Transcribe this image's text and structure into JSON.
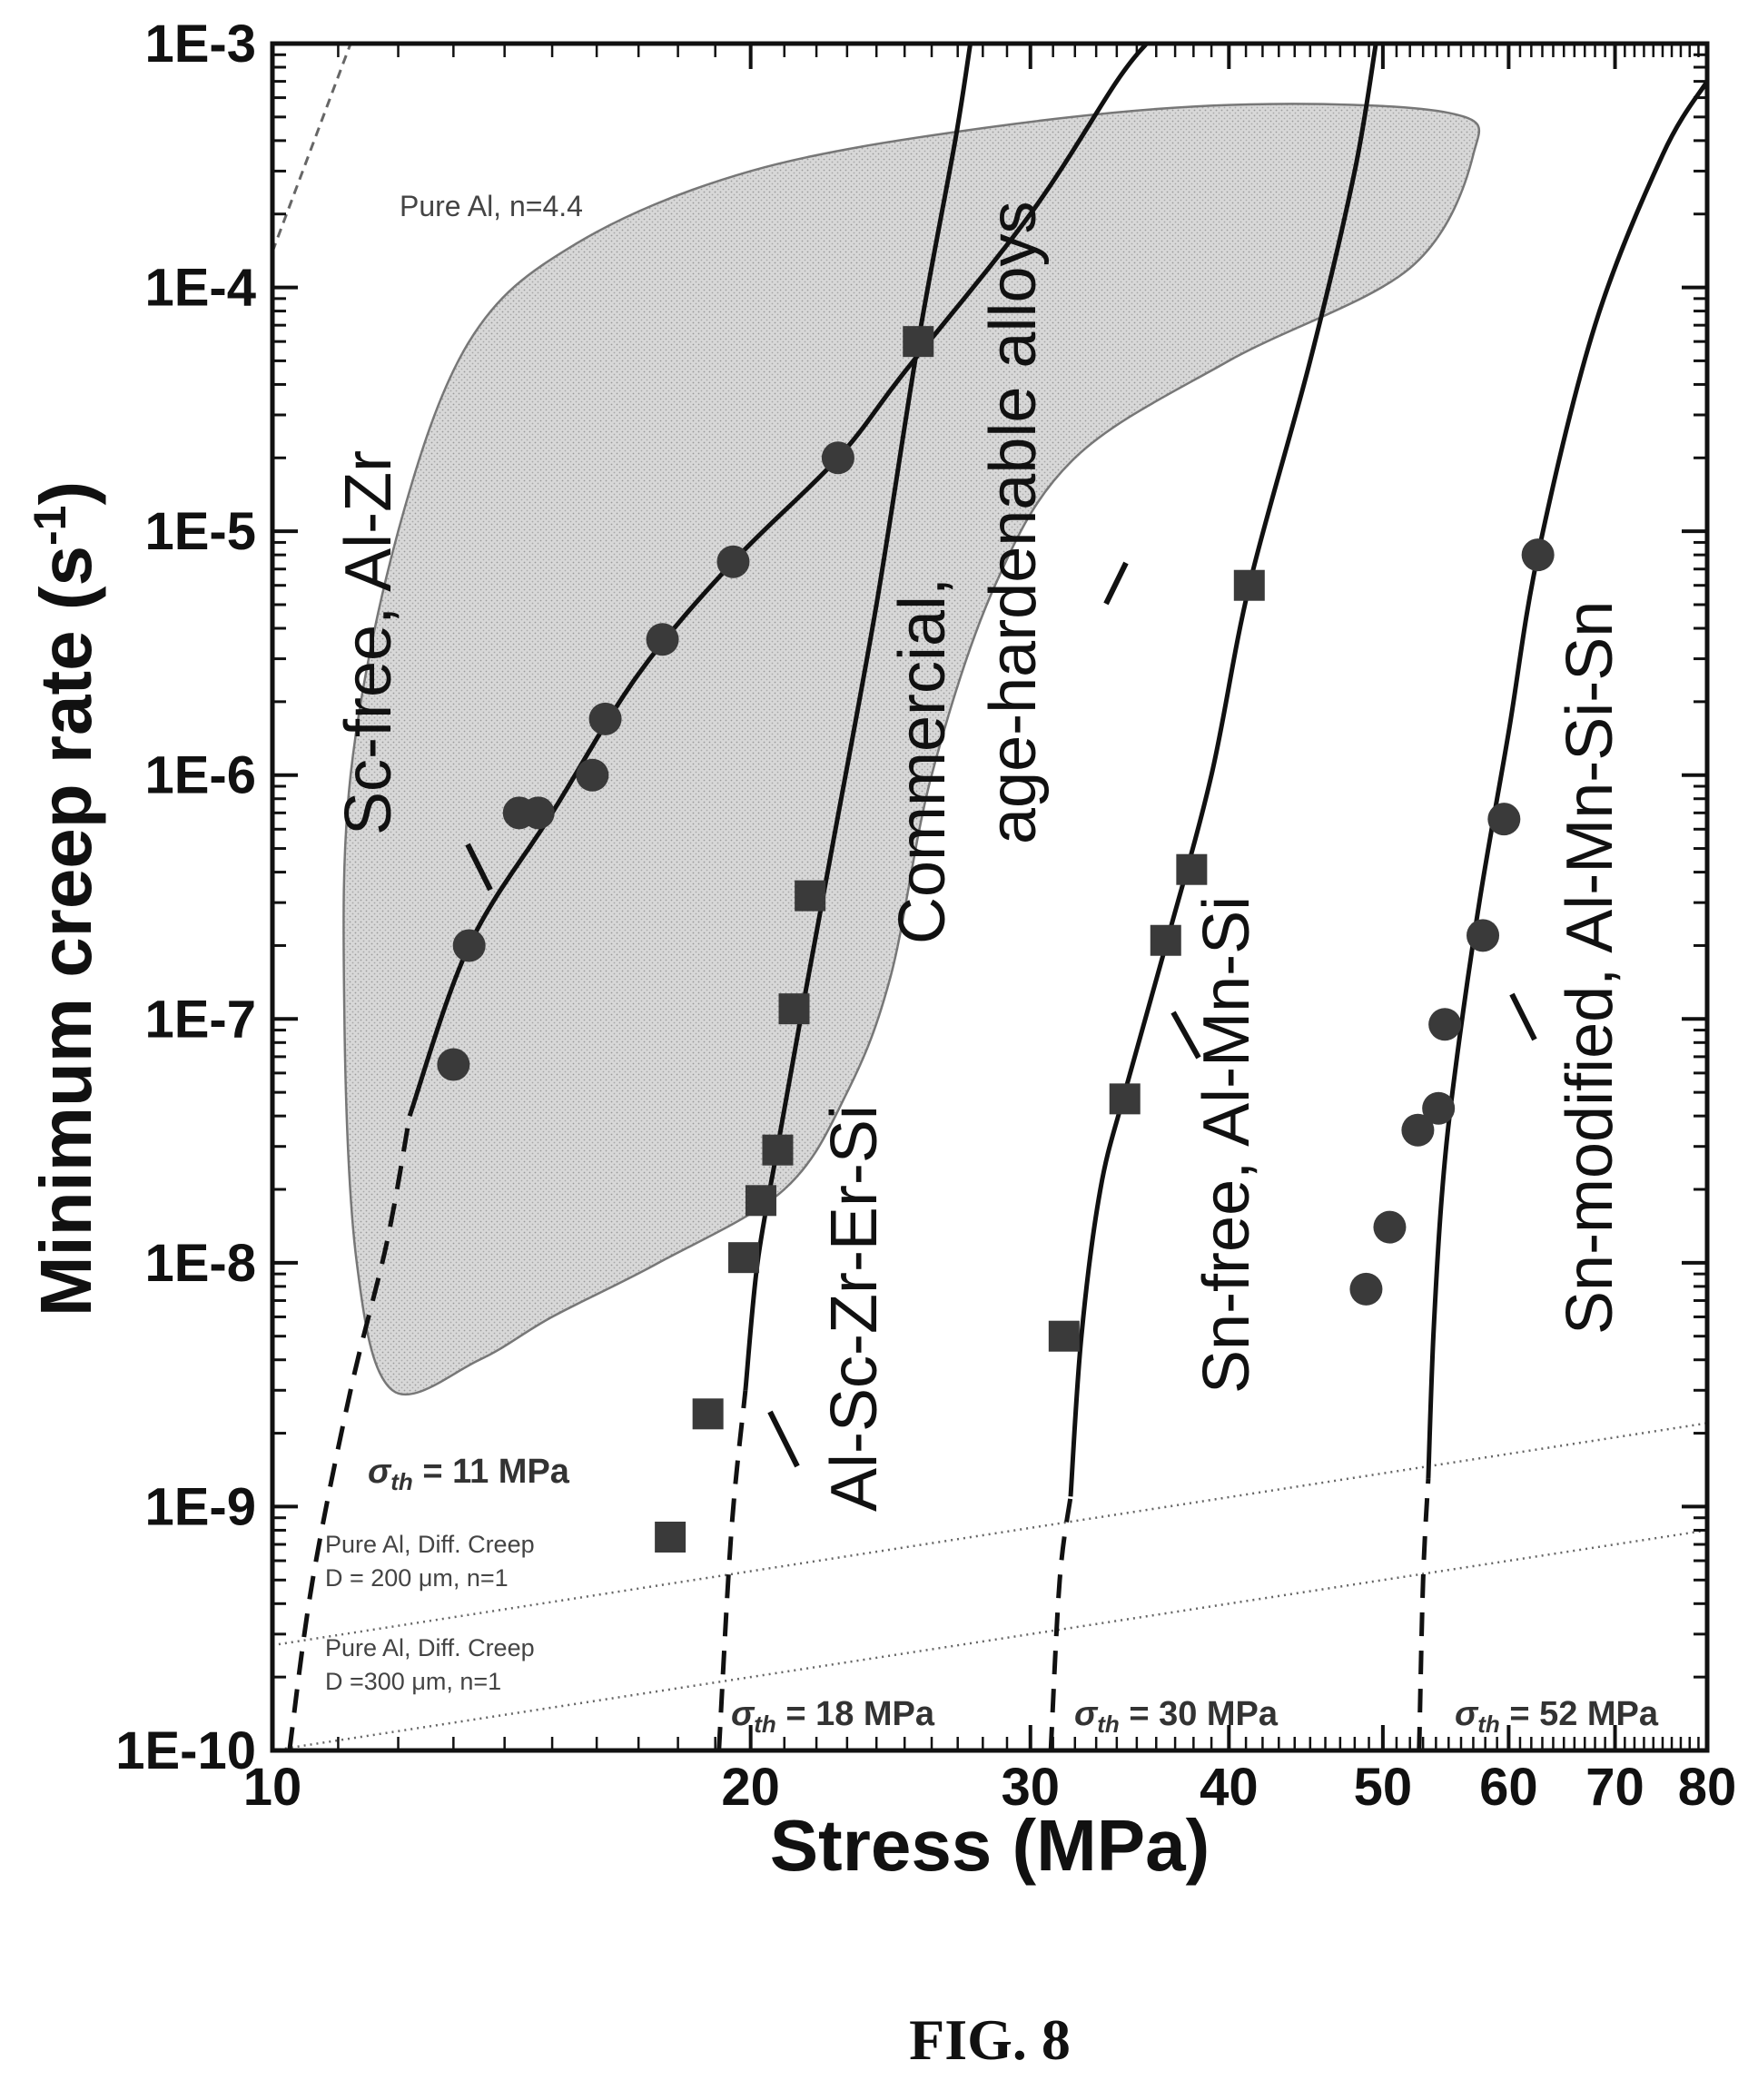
{
  "figure_caption": "FIG. 8",
  "chart_data": {
    "type": "scatter",
    "xscale": "log",
    "yscale": "log",
    "xlim": [
      10,
      80
    ],
    "ylim": [
      1e-10,
      0.001
    ],
    "xlabel": "Stress (MPa)",
    "ylabel": {
      "main": "Minimum creep rate (s",
      "sup": "-1",
      "end": ")"
    },
    "x_ticks": [
      {
        "v": 10,
        "label": "10"
      },
      {
        "v": 20,
        "label": "20"
      },
      {
        "v": 30,
        "label": "30"
      },
      {
        "v": 40,
        "label": "40"
      },
      {
        "v": 50,
        "label": "50"
      },
      {
        "v": 60,
        "label": "60"
      },
      {
        "v": 70,
        "label": "70"
      },
      {
        "v": 80,
        "label": "80"
      }
    ],
    "y_ticks": [
      {
        "v": 1e-10,
        "label": "1E-10"
      },
      {
        "v": 1e-09,
        "label": "1E-9"
      },
      {
        "v": 1e-08,
        "label": "1E-8"
      },
      {
        "v": 1e-07,
        "label": "1E-7"
      },
      {
        "v": 1e-06,
        "label": "1E-6"
      },
      {
        "v": 1e-05,
        "label": "1E-5"
      },
      {
        "v": 0.0001,
        "label": "1E-4"
      },
      {
        "v": 0.001,
        "label": "1E-3"
      }
    ],
    "shaded_region": {
      "label": "Commercial, age-hardenable alloys",
      "outline": [
        [
          11.9,
          3e-09
        ],
        [
          11.3,
          1e-08
        ],
        [
          11.1,
          1e-07
        ],
        [
          11.2,
          1e-06
        ],
        [
          12.0,
          1e-05
        ],
        [
          13.3,
          6e-05
        ],
        [
          15.5,
          0.00015
        ],
        [
          20.0,
          0.0003
        ],
        [
          28.0,
          0.00045
        ],
        [
          40.0,
          0.00056
        ],
        [
          55.0,
          0.00052
        ],
        [
          57.0,
          0.00035
        ],
        [
          52.0,
          0.00012
        ],
        [
          40.0,
          5e-05
        ],
        [
          32.0,
          2e-05
        ],
        [
          28.5,
          6e-06
        ],
        [
          26.0,
          1e-06
        ],
        [
          24.5,
          1.5e-07
        ],
        [
          23.0,
          5e-08
        ],
        [
          21.0,
          2e-08
        ],
        [
          17.5,
          1e-08
        ],
        [
          15.0,
          6e-09
        ],
        [
          13.5,
          4e-09
        ]
      ]
    },
    "series": [
      {
        "name": "Sc-free, Al-Zr",
        "marker": "circle",
        "points": [
          [
            13.0,
            6.5e-08
          ],
          [
            13.3,
            2e-07
          ],
          [
            14.3,
            7e-07
          ],
          [
            14.7,
            7e-07
          ],
          [
            15.9,
            1e-06
          ],
          [
            16.2,
            1.7e-06
          ],
          [
            17.6,
            3.6e-06
          ],
          [
            19.5,
            7.5e-06
          ],
          [
            22.7,
            2e-05
          ]
        ],
        "fit_solid": [
          [
            12.2,
            4e-08
          ],
          [
            13.3,
            2e-07
          ],
          [
            15.0,
            7e-07
          ],
          [
            17.0,
            2.6e-06
          ],
          [
            19.5,
            7.5e-06
          ],
          [
            22.7,
            2e-05
          ],
          [
            25.0,
            4.5e-05
          ],
          [
            30.0,
            0.0002
          ],
          [
            34.0,
            0.0007
          ],
          [
            35.5,
            0.001
          ]
        ],
        "fit_dashed": [
          [
            10.25,
            1e-10
          ],
          [
            10.6,
            5e-10
          ],
          [
            11.2,
            3e-09
          ],
          [
            11.8,
            1.2e-08
          ],
          [
            12.2,
            4e-08
          ]
        ],
        "threshold": "σ_th = 11 MPa"
      },
      {
        "name": "Al-Sc-Zr-Er-Si",
        "marker": "square",
        "points": [
          [
            17.8,
            7.5e-10
          ],
          [
            18.8,
            2.4e-09
          ],
          [
            19.8,
            1.05e-08
          ],
          [
            20.3,
            1.8e-08
          ],
          [
            20.8,
            2.9e-08
          ],
          [
            21.3,
            1.1e-07
          ],
          [
            21.8,
            3.2e-07
          ],
          [
            25.5,
            6e-05
          ]
        ],
        "fit_solid": [
          [
            19.85,
            3e-09
          ],
          [
            20.2,
            1e-08
          ],
          [
            20.8,
            3e-08
          ],
          [
            21.5,
            1e-07
          ],
          [
            22.5,
            5e-07
          ],
          [
            24.0,
            5e-06
          ],
          [
            25.5,
            6e-05
          ],
          [
            26.9,
            0.0004
          ],
          [
            27.5,
            0.001
          ]
        ],
        "fit_dashed": [
          [
            19.1,
            1e-10
          ],
          [
            19.45,
            8e-10
          ],
          [
            19.85,
            3e-09
          ]
        ],
        "threshold": "σ_th = 18 MPa"
      },
      {
        "name": "Sn-free, Al-Mn-Si",
        "marker": "square",
        "points": [
          [
            31.5,
            5e-09
          ],
          [
            34.4,
            4.7e-08
          ],
          [
            36.5,
            2.1e-07
          ],
          [
            37.9,
            4.1e-07
          ],
          [
            41.2,
            6e-06
          ]
        ],
        "fit_solid": [
          [
            31.8,
            1.1e-09
          ],
          [
            32.3,
            5e-09
          ],
          [
            33.2,
            2e-08
          ],
          [
            34.4,
            5e-08
          ],
          [
            36.5,
            2e-07
          ],
          [
            39.0,
            1e-06
          ],
          [
            41.2,
            6e-06
          ],
          [
            45.0,
            5e-05
          ],
          [
            48.0,
            0.0003
          ],
          [
            49.5,
            0.001
          ]
        ],
        "fit_dashed": [
          [
            30.9,
            1e-10
          ],
          [
            31.3,
            5e-10
          ],
          [
            31.8,
            1.1e-09
          ]
        ],
        "threshold": "σ_th = 30 MPa"
      },
      {
        "name": "Sn-modified, Al-Mn-Si-Sn",
        "marker": "circle",
        "points": [
          [
            48.8,
            7.8e-09
          ],
          [
            50.5,
            1.4e-08
          ],
          [
            52.6,
            3.5e-08
          ],
          [
            54.2,
            4.3e-08
          ],
          [
            54.7,
            9.5e-08
          ],
          [
            57.8,
            2.2e-07
          ],
          [
            59.6,
            6.6e-07
          ],
          [
            62.6,
            8e-06
          ]
        ],
        "fit_solid": [
          [
            53.4,
            1.3e-09
          ],
          [
            53.8,
            5e-09
          ],
          [
            54.5,
            2e-08
          ],
          [
            55.5,
            6e-08
          ],
          [
            57.5,
            3e-07
          ],
          [
            60.0,
            1.5e-06
          ],
          [
            62.6,
            8e-06
          ],
          [
            68.0,
            7e-05
          ],
          [
            75.0,
            0.00035
          ],
          [
            80.0,
            0.0007
          ]
        ],
        "fit_dashed": [
          [
            52.7,
            1e-10
          ],
          [
            53.0,
            5e-10
          ],
          [
            53.4,
            1.3e-09
          ]
        ],
        "threshold": "σ_th = 52 MPa"
      }
    ],
    "reference_lines": [
      {
        "label": "Pure Al, n=4.4",
        "style": "dashed",
        "points": [
          [
            10,
            0.00014
          ],
          [
            11.2,
            0.001
          ]
        ]
      },
      {
        "label": "Pure Al, Diff. Creep\nD = 200 μm, n=1",
        "style": "dotted",
        "points": [
          [
            10,
            2.7e-10
          ],
          [
            80,
            2.2e-09
          ]
        ]
      },
      {
        "label": "Pure Al, Diff. Creep\nD =300 μm, n=1",
        "style": "dotted",
        "points": [
          [
            10,
            1e-10
          ],
          [
            80,
            8e-10
          ]
        ]
      }
    ]
  }
}
